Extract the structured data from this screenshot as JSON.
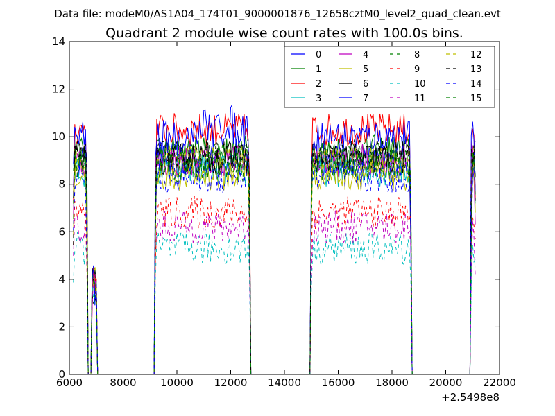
{
  "figure": {
    "suptitle": "Data file: modeM0/AS1A04_174T01_9000001876_12658cztM0_level2_quad_clean.evt",
    "title": "Quadrant 2 module wise count rates with 100.0s bins.",
    "offset_text": "+2.5498e8"
  },
  "chart_data": {
    "type": "line",
    "title": "Quadrant 2 module wise count rates with 100.0s bins.",
    "xlabel": "",
    "ylabel": "",
    "xlim": [
      6000,
      22000
    ],
    "ylim": [
      0,
      14
    ],
    "x_offset": 254980000,
    "x_ticks": [
      6000,
      8000,
      10000,
      12000,
      14000,
      16000,
      18000,
      20000,
      22000
    ],
    "x_tick_labels": [
      "6000",
      "8000",
      "10000",
      "12000",
      "14000",
      "16000",
      "18000",
      "20000",
      "22000"
    ],
    "y_ticks": [
      0,
      2,
      4,
      6,
      8,
      10,
      12,
      14
    ],
    "y_tick_labels": [
      "0",
      "2",
      "4",
      "6",
      "8",
      "10",
      "12",
      "14"
    ],
    "grid": false,
    "legend_position": "top-right",
    "legend_columns": 4,
    "segments": [
      [
        6150,
        6650
      ],
      [
        6850,
        7000
      ],
      [
        9200,
        12700
      ],
      [
        15000,
        18700
      ],
      [
        20950,
        21100
      ]
    ],
    "series": [
      {
        "name": "0",
        "color": "#0000ff",
        "dash": "solid",
        "level": 9.0
      },
      {
        "name": "1",
        "color": "#008000",
        "dash": "solid",
        "level": 9.4
      },
      {
        "name": "2",
        "color": "#ff0000",
        "dash": "solid",
        "level": 10.3
      },
      {
        "name": "3",
        "color": "#00bfbf",
        "dash": "solid",
        "level": 8.6
      },
      {
        "name": "4",
        "color": "#bf00bf",
        "dash": "solid",
        "level": 9.0
      },
      {
        "name": "5",
        "color": "#bfbf00",
        "dash": "solid",
        "level": 8.4
      },
      {
        "name": "6",
        "color": "#000000",
        "dash": "solid",
        "level": 9.1
      },
      {
        "name": "7",
        "color": "#0000ff",
        "dash": "solid",
        "level": 10.0
      },
      {
        "name": "8",
        "color": "#008000",
        "dash": "dashed",
        "level": 9.0
      },
      {
        "name": "9",
        "color": "#ff0000",
        "dash": "dashed",
        "level": 6.8
      },
      {
        "name": "10",
        "color": "#00bfbf",
        "dash": "dashed",
        "level": 5.3
      },
      {
        "name": "11",
        "color": "#bf00bf",
        "dash": "dashed",
        "level": 6.2
      },
      {
        "name": "12",
        "color": "#bfbf00",
        "dash": "dashed",
        "level": 9.0
      },
      {
        "name": "13",
        "color": "#000000",
        "dash": "dashed",
        "level": 9.2
      },
      {
        "name": "14",
        "color": "#0000ff",
        "dash": "dashed",
        "level": 8.3
      },
      {
        "name": "15",
        "color": "#008000",
        "dash": "dashed",
        "level": 8.8
      }
    ]
  }
}
